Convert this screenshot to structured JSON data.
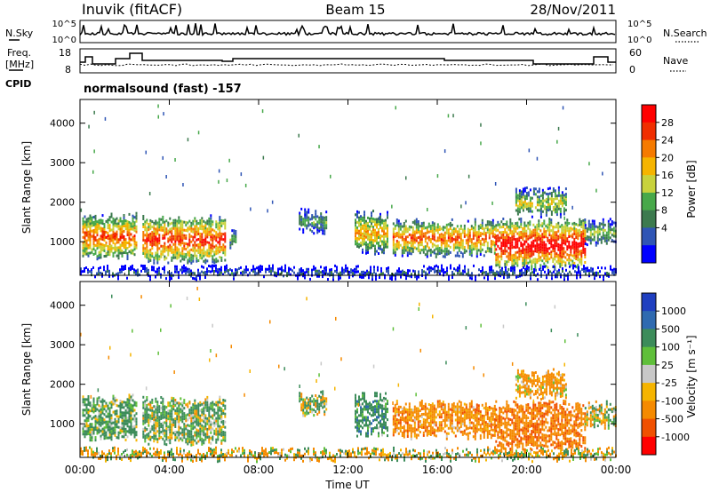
{
  "header": {
    "station": "Inuvik (fitACF)",
    "beam": "Beam 15",
    "date": "28/Nov/2011"
  },
  "panels": {
    "nsky": {
      "left_label": "N.Sky",
      "right_label": "N.Search",
      "left_ticks": [
        "10^5",
        "10^0"
      ],
      "right_ticks": [
        "10^5",
        "10^0"
      ]
    },
    "freq": {
      "left_label_1": "Freq.",
      "left_label_2": "[MHz]",
      "right_label": "Nave",
      "left_ticks": [
        "18",
        "8"
      ],
      "right_ticks": [
        "60",
        "0"
      ]
    },
    "cpid": {
      "label": "CPID",
      "text": "normalsound (fast) -157"
    }
  },
  "chart_data": [
    {
      "type": "heatmap",
      "title": "",
      "xlabel": "",
      "ylabel": "Slant Range [km]",
      "x_ticks": [
        "00:00",
        "04:00",
        "08:00",
        "12:00",
        "16:00",
        "20:00",
        "00:00"
      ],
      "y_ticks": [
        "1000",
        "2000",
        "3000",
        "4000"
      ],
      "ylim": [
        150,
        4600
      ],
      "xlim_hours": [
        0,
        24
      ],
      "colorbar": {
        "label": "Power [dB]",
        "ticks": [
          "4",
          "8",
          "12",
          "16",
          "20",
          "24",
          "28"
        ],
        "colors": [
          "#0000ff",
          "#2f55b5",
          "#3c7a4e",
          "#47a84a",
          "#c8d23c",
          "#f5b400",
          "#f57a00",
          "#f02e00",
          "#ff0000"
        ]
      },
      "blobs": [
        {
          "t0": 0.1,
          "t1": 2.5,
          "r0": 650,
          "r1": 1650,
          "v": 22
        },
        {
          "t0": 2.8,
          "t1": 6.5,
          "r0": 550,
          "r1": 1600,
          "v": 24
        },
        {
          "t0": 6.7,
          "t1": 7.0,
          "r0": 900,
          "r1": 1300,
          "v": 12
        },
        {
          "t0": 9.8,
          "t1": 11.0,
          "r0": 1300,
          "r1": 1750,
          "v": 10
        },
        {
          "t0": 12.3,
          "t1": 13.8,
          "r0": 800,
          "r1": 1700,
          "v": 18
        },
        {
          "t0": 14.0,
          "t1": 18.6,
          "r0": 750,
          "r1": 1500,
          "v": 22
        },
        {
          "t0": 18.6,
          "t1": 22.6,
          "r0": 400,
          "r1": 1500,
          "v": 28
        },
        {
          "t0": 19.5,
          "t1": 21.8,
          "r0": 1700,
          "r1": 2300,
          "v": 14
        },
        {
          "t0": 22.6,
          "t1": 24.0,
          "r0": 1000,
          "r1": 1500,
          "v": 12
        },
        {
          "t0": 0,
          "t1": 24,
          "r0": 150,
          "r1": 320,
          "v": 6
        }
      ]
    },
    {
      "type": "heatmap",
      "title": "",
      "xlabel": "Time UT",
      "ylabel": "Slant Range [km]",
      "x_ticks": [
        "00:00",
        "04:00",
        "08:00",
        "12:00",
        "16:00",
        "20:00",
        "00:00"
      ],
      "y_ticks": [
        "1000",
        "2000",
        "3000",
        "4000"
      ],
      "ylim": [
        150,
        4600
      ],
      "xlim_hours": [
        0,
        24
      ],
      "colorbar": {
        "label": "Velocity [m s⁻¹]",
        "ticks": [
          "1000",
          "500",
          "100",
          "25",
          "-25",
          "-100",
          "-500",
          "-1000"
        ],
        "colors": [
          "#1f3fc0",
          "#2f6ab0",
          "#3c8c5a",
          "#5fbf3a",
          "#c8c8c8",
          "#f5b400",
          "#f58a00",
          "#f05000",
          "#ff0000"
        ]
      },
      "blobs": [
        {
          "t0": 0.1,
          "t1": 2.5,
          "r0": 650,
          "r1": 1650,
          "v": 200
        },
        {
          "t0": 2.8,
          "t1": 6.5,
          "r0": 550,
          "r1": 1600,
          "v": 150
        },
        {
          "t0": 9.8,
          "t1": 11.0,
          "r0": 1300,
          "r1": 1750,
          "v": 100
        },
        {
          "t0": 12.3,
          "t1": 13.8,
          "r0": 800,
          "r1": 1700,
          "v": 300
        },
        {
          "t0": 14.0,
          "t1": 18.6,
          "r0": 750,
          "r1": 1500,
          "v": -300
        },
        {
          "t0": 18.6,
          "t1": 22.6,
          "r0": 400,
          "r1": 1500,
          "v": -400
        },
        {
          "t0": 19.5,
          "t1": 21.8,
          "r0": 1700,
          "r1": 2300,
          "v": -200
        },
        {
          "t0": 22.6,
          "t1": 24.0,
          "r0": 1000,
          "r1": 1500,
          "v": 0
        },
        {
          "t0": 0,
          "t1": 24,
          "r0": 150,
          "r1": 320,
          "v": -50
        }
      ]
    }
  ]
}
